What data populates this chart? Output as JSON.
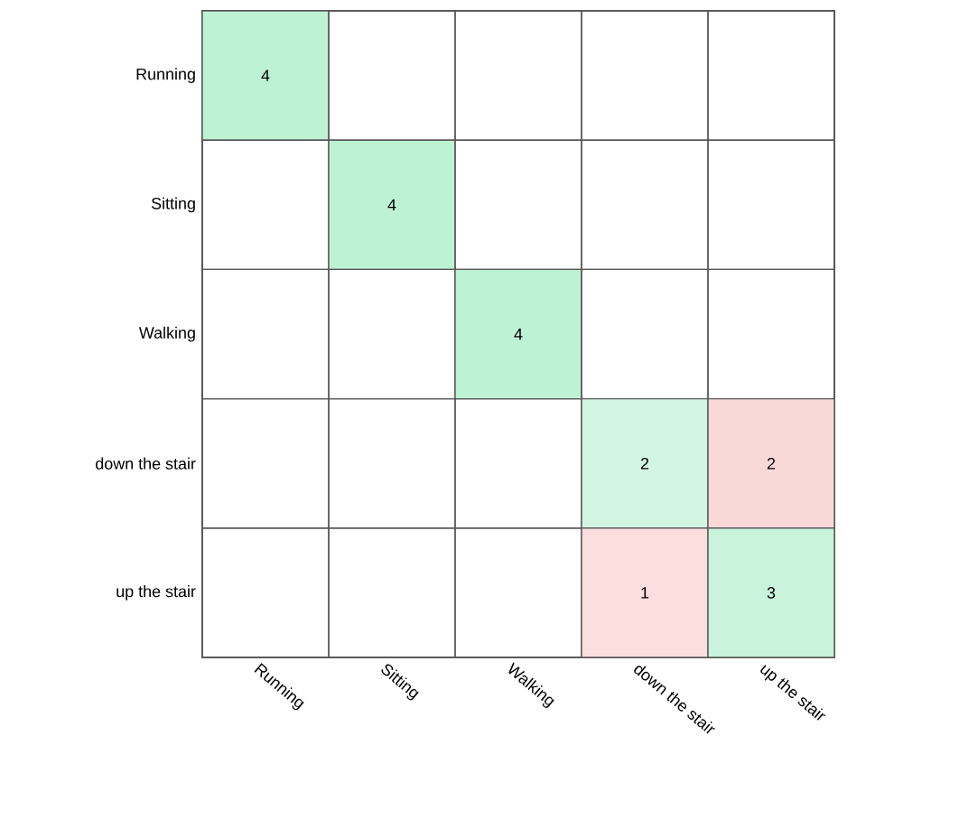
{
  "chart_data": {
    "type": "heatmap",
    "categories": [
      "Running",
      "Sitting",
      "Walking",
      "down the stair",
      "up the stair"
    ],
    "y_categories": [
      "Running",
      "Sitting",
      "Walking",
      "down the stair",
      "up the stair"
    ],
    "cells": [
      [
        4,
        null,
        null,
        null,
        null
      ],
      [
        null,
        4,
        null,
        null,
        null
      ],
      [
        null,
        null,
        4,
        null,
        null
      ],
      [
        null,
        null,
        null,
        2,
        2
      ],
      [
        null,
        null,
        null,
        1,
        3
      ]
    ],
    "data_labels": true
  }
}
